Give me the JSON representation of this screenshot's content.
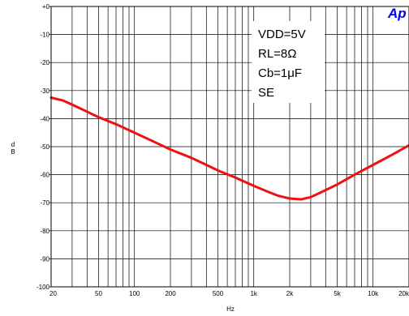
{
  "chart_data": {
    "type": "line",
    "title": "",
    "xlabel": "Hz",
    "ylabel": "dB",
    "x_scale": "log",
    "xlim": [
      20,
      20000
    ],
    "ylim": [
      -100,
      0
    ],
    "grid": true,
    "x_ticks": [
      {
        "value": 20,
        "label": "20"
      },
      {
        "value": 50,
        "label": "50"
      },
      {
        "value": 100,
        "label": "100"
      },
      {
        "value": 200,
        "label": "200"
      },
      {
        "value": 500,
        "label": "500"
      },
      {
        "value": 1000,
        "label": "1k"
      },
      {
        "value": 2000,
        "label": "2k"
      },
      {
        "value": 5000,
        "label": "5k"
      },
      {
        "value": 10000,
        "label": "10k"
      },
      {
        "value": 20000,
        "label": "20k"
      }
    ],
    "y_ticks": [
      {
        "value": 0,
        "label": "+0"
      },
      {
        "value": -10,
        "label": "-10"
      },
      {
        "value": -20,
        "label": "-20"
      },
      {
        "value": -30,
        "label": "-30"
      },
      {
        "value": -40,
        "label": "-40"
      },
      {
        "value": -50,
        "label": "-50"
      },
      {
        "value": -60,
        "label": "-60"
      },
      {
        "value": -70,
        "label": "-70"
      },
      {
        "value": -80,
        "label": "-80"
      },
      {
        "value": -90,
        "label": "-90"
      },
      {
        "value": -100,
        "label": "-100"
      }
    ],
    "series": [
      {
        "color": "#ee1111",
        "x": [
          20,
          25,
          30,
          40,
          50,
          70,
          100,
          150,
          200,
          300,
          400,
          500,
          700,
          1000,
          1300,
          1600,
          2000,
          2500,
          3000,
          4000,
          5000,
          7000,
          10000,
          15000,
          20000
        ],
        "values": [
          -32.5,
          -33.5,
          -35,
          -37.5,
          -39.5,
          -42,
          -45,
          -48.5,
          -51,
          -54,
          -56.5,
          -58.5,
          -61,
          -64,
          -66,
          -67.5,
          -68.5,
          -68.8,
          -68,
          -65.5,
          -63.5,
          -60,
          -56.5,
          -52.5,
          -49.5
        ]
      }
    ],
    "annotations": [
      "VDD=5V",
      "RL=8Ω",
      "Cb=1μF",
      "SE"
    ]
  },
  "logo": {
    "text": "Ap"
  }
}
